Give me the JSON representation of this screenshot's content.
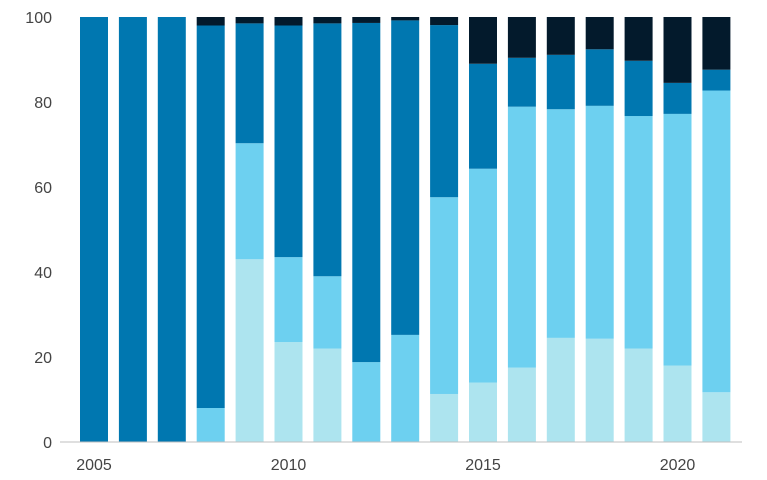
{
  "chart_data": {
    "type": "bar",
    "stacked": true,
    "x": [
      2005,
      2006,
      2007,
      2008,
      2009,
      2010,
      2011,
      2012,
      2013,
      2014,
      2015,
      2016,
      2017,
      2018,
      2019,
      2020,
      2021
    ],
    "x_tick_labels": [
      "2005",
      "2010",
      "2015",
      "2020"
    ],
    "y_tick_labels": [
      "0",
      "20",
      "40",
      "60",
      "80",
      "100"
    ],
    "ylim": [
      0,
      100
    ],
    "title": "",
    "xlabel": "",
    "ylabel": "",
    "grid": false,
    "series": [
      {
        "color": "#ade4ef",
        "values": [
          0,
          0,
          0,
          0,
          43,
          23.5,
          22,
          0,
          0,
          11.3,
          14,
          17.5,
          24.5,
          24.3,
          22,
          18,
          11.7
        ]
      },
      {
        "color": "#6dd0f0",
        "values": [
          0,
          0,
          0,
          8,
          27.3,
          20,
          17,
          18.8,
          25.2,
          46.3,
          50.3,
          61.4,
          53.8,
          54.8,
          54.7,
          59.2,
          71
        ]
      },
      {
        "color": "#0077b0",
        "values": [
          100,
          100,
          100,
          90,
          28.2,
          54.5,
          59.5,
          79.8,
          74,
          40.5,
          24.7,
          11.5,
          12.8,
          13.3,
          13,
          7.3,
          4.9
        ]
      },
      {
        "color": "#031a2c",
        "values": [
          0,
          0,
          0,
          2,
          1.5,
          2,
          1.5,
          1.4,
          0.8,
          1.9,
          11,
          9.6,
          8.9,
          7.6,
          10.3,
          15.5,
          12.4
        ]
      }
    ]
  }
}
